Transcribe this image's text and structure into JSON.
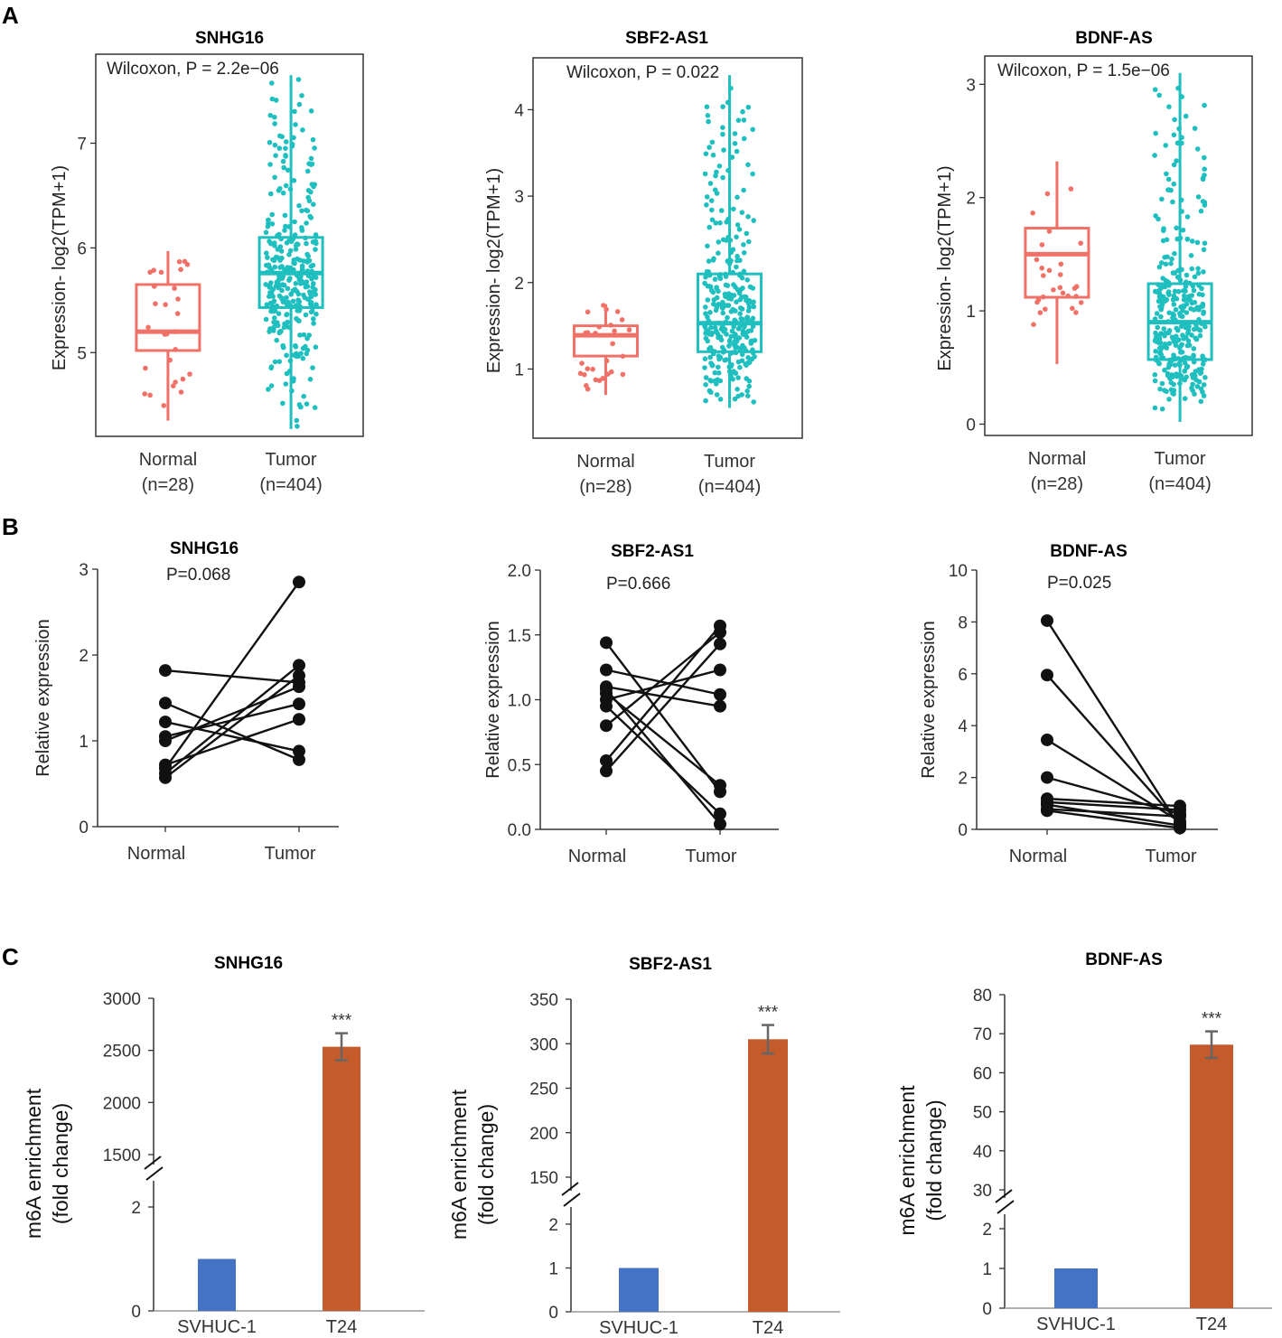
{
  "panel_labels": [
    "A",
    "B",
    "C"
  ],
  "colors": {
    "normal": "#f07167",
    "tumor": "#1fbfbf",
    "points": "#111111",
    "bar_control": "#4472c4",
    "bar_t24": "#c55a2a",
    "error": "#666666"
  },
  "chart_data": [
    {
      "panel": "A",
      "type": "boxplot",
      "title": "SNHG16",
      "ylabel": "Expression- log2(TPM+1)",
      "annotation": "Wilcoxon, P = 2.2e−06",
      "ylim": [
        4.2,
        7.85
      ],
      "yticks": [
        "5",
        "6",
        "7"
      ],
      "categories": [
        {
          "name": "Normal",
          "n": "(n=28)"
        },
        {
          "name": "Tumor",
          "n": "(n=404)"
        }
      ],
      "groups": [
        {
          "q1": 5.02,
          "median": 5.2,
          "q3": 5.65,
          "whisker_low": 4.35,
          "whisker_high": 5.97,
          "n": 28
        },
        {
          "q1": 5.43,
          "median": 5.76,
          "q3": 6.1,
          "whisker_low": 4.27,
          "whisker_high": 7.65,
          "n": 404
        }
      ]
    },
    {
      "panel": "A",
      "type": "boxplot",
      "title": "SBF2-AS1",
      "ylabel": "Expression- log2(TPM+1)",
      "annotation": "Wilcoxon, P = 0.022",
      "ylim": [
        0.2,
        4.6
      ],
      "yticks": [
        "1",
        "2",
        "3",
        "4"
      ],
      "categories": [
        {
          "name": "Normal",
          "n": "(n=28)"
        },
        {
          "name": "Tumor",
          "n": "(n=404)"
        }
      ],
      "groups": [
        {
          "q1": 1.15,
          "median": 1.39,
          "q3": 1.5,
          "whisker_low": 0.7,
          "whisker_high": 1.75,
          "n": 28
        },
        {
          "q1": 1.2,
          "median": 1.53,
          "q3": 2.1,
          "whisker_low": 0.55,
          "whisker_high": 4.4,
          "n": 404
        }
      ]
    },
    {
      "panel": "A",
      "type": "boxplot",
      "title": "BDNF-AS",
      "ylabel": "Expression- log2(TPM+1)",
      "annotation": "Wilcoxon, P = 1.5e−06",
      "ylim": [
        -0.1,
        3.25
      ],
      "yticks": [
        "0",
        "1",
        "2",
        "3"
      ],
      "categories": [
        {
          "name": "Normal",
          "n": "(n=28)"
        },
        {
          "name": "Tumor",
          "n": "(n=404)"
        }
      ],
      "groups": [
        {
          "q1": 1.12,
          "median": 1.5,
          "q3": 1.73,
          "whisker_low": 0.53,
          "whisker_high": 2.32,
          "n": 28
        },
        {
          "q1": 0.57,
          "median": 0.9,
          "q3": 1.24,
          "whisker_low": 0.02,
          "whisker_high": 3.1,
          "n": 404
        }
      ]
    },
    {
      "panel": "B",
      "type": "paired-line",
      "title": "SNHG16",
      "ylabel": "Relative expression",
      "annotation": "P=0.068",
      "ylim": [
        0,
        3
      ],
      "yticks": [
        "0",
        "1",
        "2",
        "3"
      ],
      "categories": [
        "Normal",
        "Tumor"
      ],
      "pairs": [
        [
          1.82,
          1.68
        ],
        [
          1.44,
          0.78
        ],
        [
          1.22,
          0.88
        ],
        [
          1.05,
          1.43
        ],
        [
          0.72,
          1.25
        ],
        [
          0.68,
          2.85
        ],
        [
          0.62,
          1.88
        ],
        [
          0.57,
          1.76
        ],
        [
          1.0,
          1.63
        ]
      ]
    },
    {
      "panel": "B",
      "type": "paired-line",
      "title": "SBF2-AS1",
      "ylabel": "Relative expression",
      "annotation": "P=0.666",
      "ylim": [
        0,
        2.0
      ],
      "yticks": [
        "0.0",
        "0.5",
        "1.0",
        "1.5",
        "2.0"
      ],
      "categories": [
        "Normal",
        "Tumor"
      ],
      "pairs": [
        [
          1.44,
          0.29
        ],
        [
          1.23,
          1.04
        ],
        [
          1.1,
          0.95
        ],
        [
          1.05,
          0.34
        ],
        [
          1.0,
          1.23
        ],
        [
          0.95,
          0.12
        ],
        [
          0.8,
          1.52
        ],
        [
          0.53,
          1.57
        ],
        [
          0.45,
          1.43
        ],
        [
          1.08,
          0.04
        ]
      ]
    },
    {
      "panel": "B",
      "type": "paired-line",
      "title": "BDNF-AS",
      "ylabel": "Relative expression",
      "annotation": "P=0.025",
      "ylim": [
        0,
        10
      ],
      "yticks": [
        "0",
        "2",
        "4",
        "6",
        "8",
        "10"
      ],
      "categories": [
        "Normal",
        "Tumor"
      ],
      "pairs": [
        [
          8.05,
          0.1
        ],
        [
          5.95,
          0.2
        ],
        [
          3.45,
          0.3
        ],
        [
          2.0,
          0.6
        ],
        [
          1.18,
          0.9
        ],
        [
          1.05,
          0.75
        ],
        [
          0.95,
          0.15
        ],
        [
          0.78,
          0.5
        ],
        [
          0.72,
          0.05
        ]
      ]
    },
    {
      "panel": "C",
      "type": "bar",
      "title": "SNHG16",
      "ylabel": "m6A enrichment",
      "ylabel2": "(fold change)",
      "categories": [
        "SVHUC-1",
        "T24"
      ],
      "values": [
        1,
        2535
      ],
      "error": [
        0,
        130
      ],
      "significance": "***",
      "axis_break": true,
      "lower_ylim": [
        0,
        2
      ],
      "lower_ticks": [
        "0",
        "2"
      ],
      "upper_ylim": [
        1500,
        3000
      ],
      "upper_ticks": [
        "1500",
        "2000",
        "2500",
        "3000"
      ]
    },
    {
      "panel": "C",
      "type": "bar",
      "title": "SBF2-AS1",
      "ylabel": "m6A enrichment",
      "ylabel2": "(fold change)",
      "categories": [
        "SVHUC-1",
        "T24"
      ],
      "values": [
        1,
        305
      ],
      "error": [
        0,
        16
      ],
      "significance": "***",
      "axis_break": true,
      "lower_ylim": [
        0,
        2
      ],
      "lower_ticks": [
        "0",
        "1",
        "2"
      ],
      "upper_ylim": [
        150,
        350
      ],
      "upper_ticks": [
        "150",
        "200",
        "250",
        "300",
        "350"
      ]
    },
    {
      "panel": "C",
      "type": "bar",
      "title": "BDNF-AS",
      "ylabel": "m6A enrichment",
      "ylabel2": "(fold change)",
      "categories": [
        "SVHUC-1",
        "T24"
      ],
      "values": [
        1,
        67.2
      ],
      "error": [
        0,
        3.4
      ],
      "significance": "***",
      "axis_break": true,
      "lower_ylim": [
        0,
        2
      ],
      "lower_ticks": [
        "0",
        "1",
        "2"
      ],
      "upper_ylim": [
        30,
        80
      ],
      "upper_ticks": [
        "30",
        "40",
        "50",
        "60",
        "70",
        "80"
      ]
    }
  ]
}
